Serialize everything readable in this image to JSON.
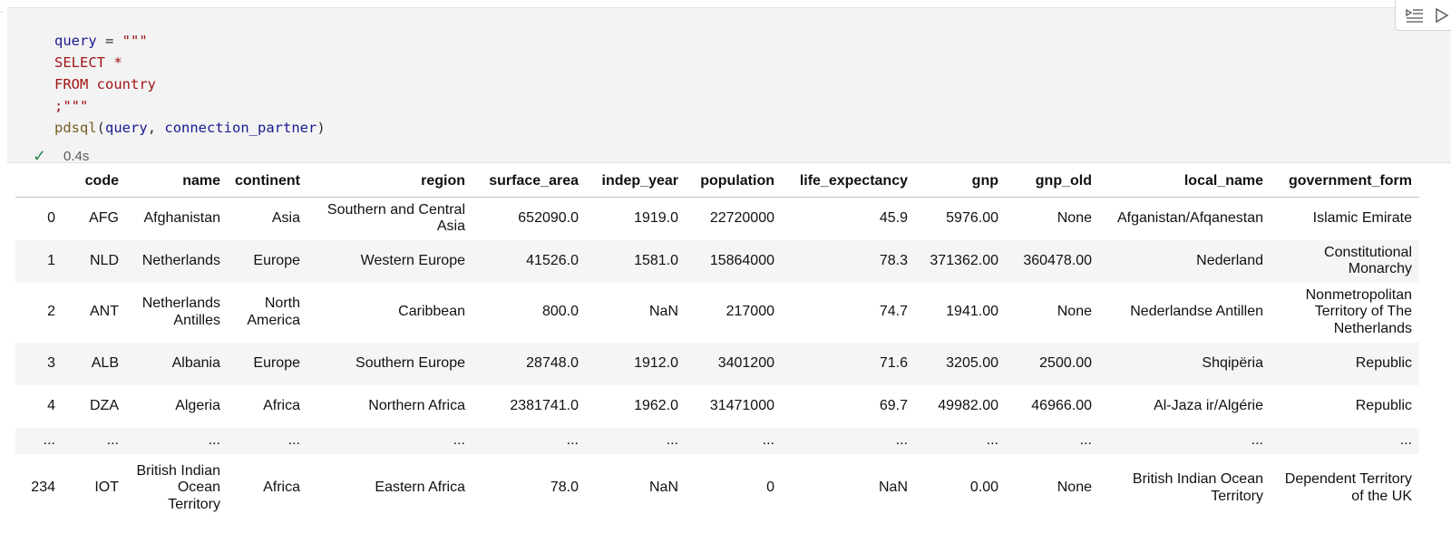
{
  "code": {
    "lines": [
      [
        {
          "t": "query",
          "c": "kv"
        },
        {
          "t": " = ",
          "c": "op"
        },
        {
          "t": "\"\"\"",
          "c": "str"
        }
      ],
      [
        {
          "t": "SELECT *",
          "c": "str"
        }
      ],
      [
        {
          "t": "FROM country",
          "c": "str"
        }
      ],
      [
        {
          "t": ";\"\"\"",
          "c": "str"
        }
      ],
      [
        {
          "t": "pdsql",
          "c": "fn"
        },
        {
          "t": "(",
          "c": "op"
        },
        {
          "t": "query",
          "c": "kv"
        },
        {
          "t": ", ",
          "c": "op"
        },
        {
          "t": "connection_partner",
          "c": "kv"
        },
        {
          "t": ")",
          "c": "op"
        }
      ]
    ]
  },
  "status": {
    "check": "✓",
    "time": "0.4s"
  },
  "toolbar": {
    "icons": [
      "run-by-line-icon",
      "run-icon"
    ]
  },
  "table": {
    "columns": [
      "",
      "code",
      "name",
      "continent",
      "region",
      "surface_area",
      "indep_year",
      "population",
      "life_expectancy",
      "gnp",
      "gnp_old",
      "local_name",
      "government_form"
    ],
    "rows": [
      [
        "0",
        "AFG",
        "Afghanistan",
        "Asia",
        "Southern and Central Asia",
        "652090.0",
        "1919.0",
        "22720000",
        "45.9",
        "5976.00",
        "None",
        "Afganistan/Afqanestan",
        "Islamic Emirate"
      ],
      [
        "1",
        "NLD",
        "Netherlands",
        "Europe",
        "Western Europe",
        "41526.0",
        "1581.0",
        "15864000",
        "78.3",
        "371362.00",
        "360478.00",
        "Nederland",
        "Constitutional Monarchy"
      ],
      [
        "2",
        "ANT",
        "Netherlands Antilles",
        "North America",
        "Caribbean",
        "800.0",
        "NaN",
        "217000",
        "74.7",
        "1941.00",
        "None",
        "Nederlandse Antillen",
        "Nonmetropolitan Territory of The Netherlands"
      ],
      [
        "3",
        "ALB",
        "Albania",
        "Europe",
        "Southern Europe",
        "28748.0",
        "1912.0",
        "3401200",
        "71.6",
        "3205.00",
        "2500.00",
        "Shqipëria",
        "Republic"
      ],
      [
        "4",
        "DZA",
        "Algeria",
        "Africa",
        "Northern Africa",
        "2381741.0",
        "1962.0",
        "31471000",
        "69.7",
        "49982.00",
        "46966.00",
        "Al-Jaza ir/Algérie",
        "Republic"
      ],
      [
        "...",
        "...",
        "...",
        "...",
        "...",
        "...",
        "...",
        "...",
        "...",
        "...",
        "...",
        "...",
        "..."
      ],
      [
        "234",
        "IOT",
        "British Indian Ocean Territory",
        "Africa",
        "Eastern Africa",
        "78.0",
        "NaN",
        "0",
        "NaN",
        "0.00",
        "None",
        "British Indian Ocean Territory",
        "Dependent Territory of the UK"
      ]
    ]
  }
}
